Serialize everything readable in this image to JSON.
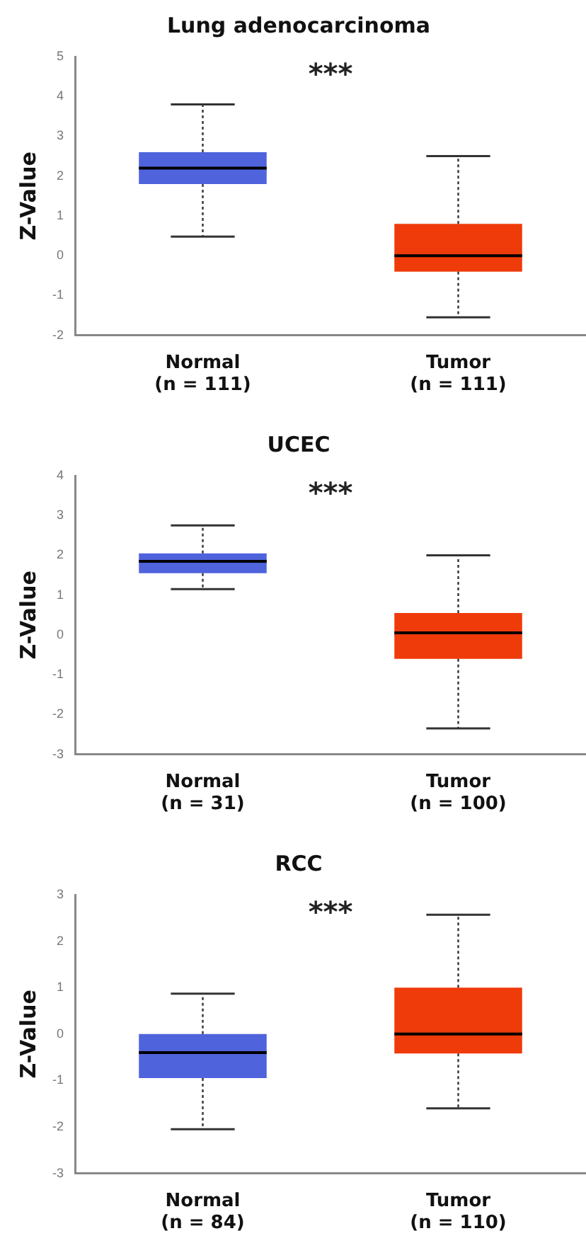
{
  "chart_data": [
    {
      "type": "box",
      "title": "Lung adenocarcinoma",
      "ylabel": "Z-Value",
      "categories": [
        "Normal\n(n = 111)",
        "Tumor\n(n = 111)"
      ],
      "colors": [
        "#4f63dc",
        "#ef3a0a"
      ],
      "boxes": [
        {
          "low": 0.48,
          "q1": 1.8,
          "median": 2.2,
          "q3": 2.6,
          "high": 3.8
        },
        {
          "low": -1.55,
          "q1": -0.4,
          "median": 0,
          "q3": 0.8,
          "high": 2.5
        }
      ],
      "ylim": [
        -2,
        5
      ],
      "yticks": [
        -2,
        -1,
        0,
        1,
        2,
        3,
        4,
        5
      ],
      "grid": false,
      "legend": false,
      "annotations": [
        "***"
      ]
    },
    {
      "type": "box",
      "title": "UCEC",
      "ylabel": "Z-Value",
      "categories": [
        "Normal\n(n = 31)",
        "Tumor\n(n = 100)"
      ],
      "colors": [
        "#4f63dc",
        "#ef3a0a"
      ],
      "boxes": [
        {
          "low": 1.15,
          "q1": 1.55,
          "median": 1.85,
          "q3": 2.05,
          "high": 2.75
        },
        {
          "low": -2.35,
          "q1": -0.6,
          "median": 0.05,
          "q3": 0.55,
          "high": 2.0
        }
      ],
      "ylim": [
        -3,
        4
      ],
      "yticks": [
        -3,
        -2,
        -1,
        0,
        1,
        2,
        3,
        4
      ],
      "grid": false,
      "legend": false,
      "annotations": [
        "***"
      ]
    },
    {
      "type": "box",
      "title": "RCC",
      "ylabel": "Z-Value",
      "categories": [
        "Normal\n(n = 84)",
        "Tumor\n(n = 110)"
      ],
      "colors": [
        "#4f63dc",
        "#ef3a0a"
      ],
      "boxes": [
        {
          "low": -2.05,
          "q1": -0.95,
          "median": -0.4,
          "q3": 0,
          "high": 0.87
        },
        {
          "low": -1.6,
          "q1": -0.42,
          "median": 0,
          "q3": 1.0,
          "high": 2.57
        }
      ],
      "ylim": [
        -3,
        3
      ],
      "yticks": [
        -3,
        -2,
        -1,
        0,
        1,
        2,
        3
      ],
      "grid": false,
      "legend": false,
      "annotations": [
        "***"
      ]
    }
  ]
}
